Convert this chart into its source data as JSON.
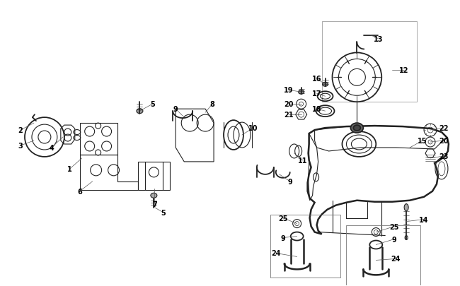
{
  "bg_color": "#ffffff",
  "line_color": "#222222",
  "label_color": "#000000",
  "fig_width": 6.5,
  "fig_height": 4.06,
  "dpi": 100
}
